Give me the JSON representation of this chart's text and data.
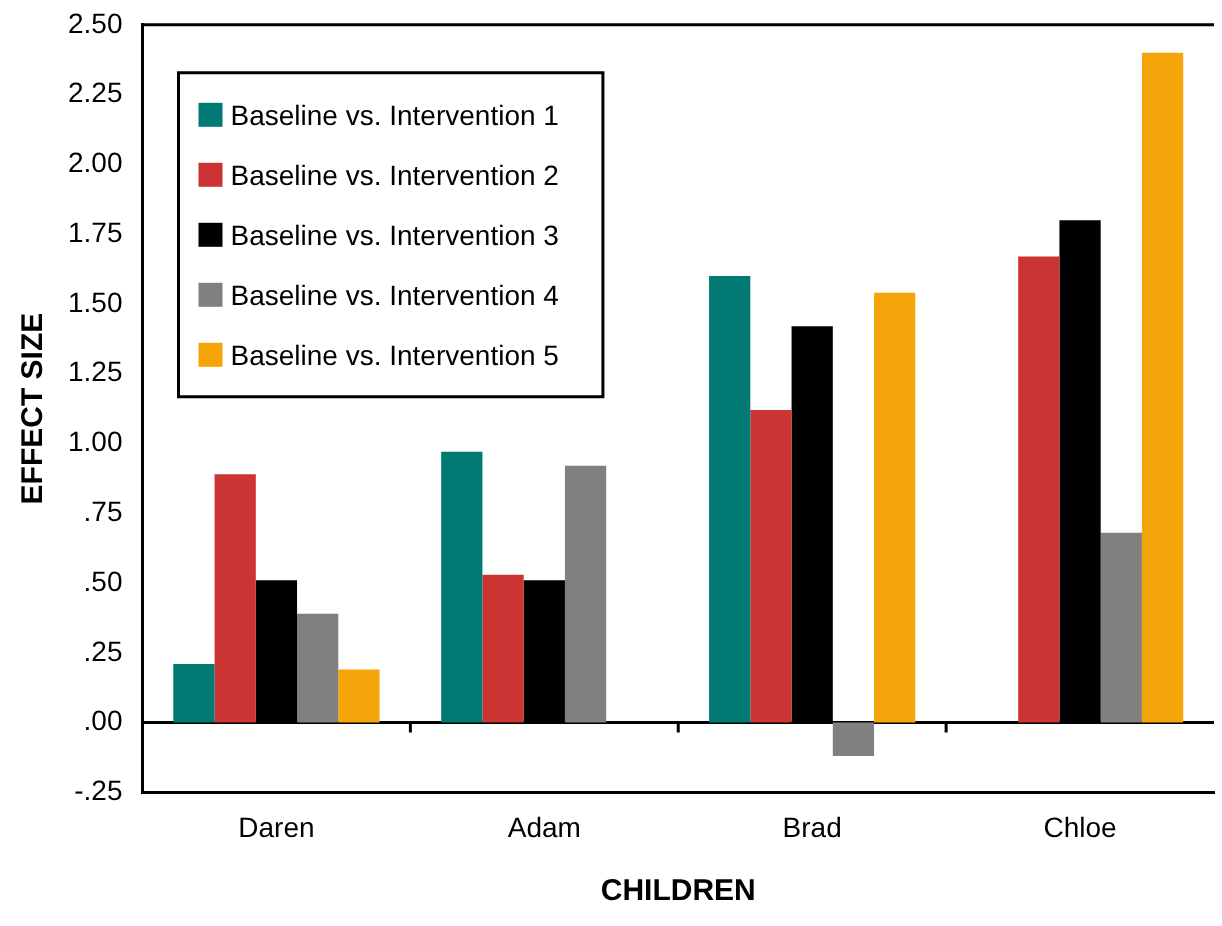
{
  "chart_data": {
    "type": "bar",
    "xlabel": "CHILDREN",
    "ylabel": "EFFECT SIZE",
    "categories": [
      "Daren",
      "Adam",
      "Brad",
      "Chloe"
    ],
    "series": [
      {
        "name": "Baseline vs. Intervention 1",
        "color": "#007a73",
        "values": [
          0.21,
          0.97,
          1.6,
          null
        ]
      },
      {
        "name": "Baseline vs. Intervention 2",
        "color": "#cc3333",
        "values": [
          0.89,
          0.53,
          1.12,
          1.67
        ]
      },
      {
        "name": "Baseline vs. Intervention 3",
        "color": "#000000",
        "values": [
          0.51,
          0.51,
          1.42,
          1.8
        ]
      },
      {
        "name": "Baseline vs. Intervention 4",
        "color": "#808080",
        "values": [
          0.39,
          0.92,
          -0.12,
          0.68
        ]
      },
      {
        "name": "Baseline vs. Intervention 5",
        "color": "#f5a50a",
        "values": [
          0.19,
          null,
          1.54,
          2.4
        ]
      }
    ],
    "ylim": [
      -0.25,
      2.5
    ],
    "yticks": [
      {
        "value": -0.25,
        "label": "-.25"
      },
      {
        "value": 0,
        "label": ".00"
      },
      {
        "value": 0.25,
        "label": ".25"
      },
      {
        "value": 0.5,
        "label": ".50"
      },
      {
        "value": 0.75,
        "label": ".75"
      },
      {
        "value": 1,
        "label": "1.00"
      },
      {
        "value": 1.25,
        "label": "1.25"
      },
      {
        "value": 1.5,
        "label": "1.50"
      },
      {
        "value": 1.75,
        "label": "1.75"
      },
      {
        "value": 2,
        "label": "2.00"
      },
      {
        "value": 2.25,
        "label": "2.25"
      },
      {
        "value": 2.5,
        "label": "2.50"
      }
    ],
    "legend": "top left"
  }
}
